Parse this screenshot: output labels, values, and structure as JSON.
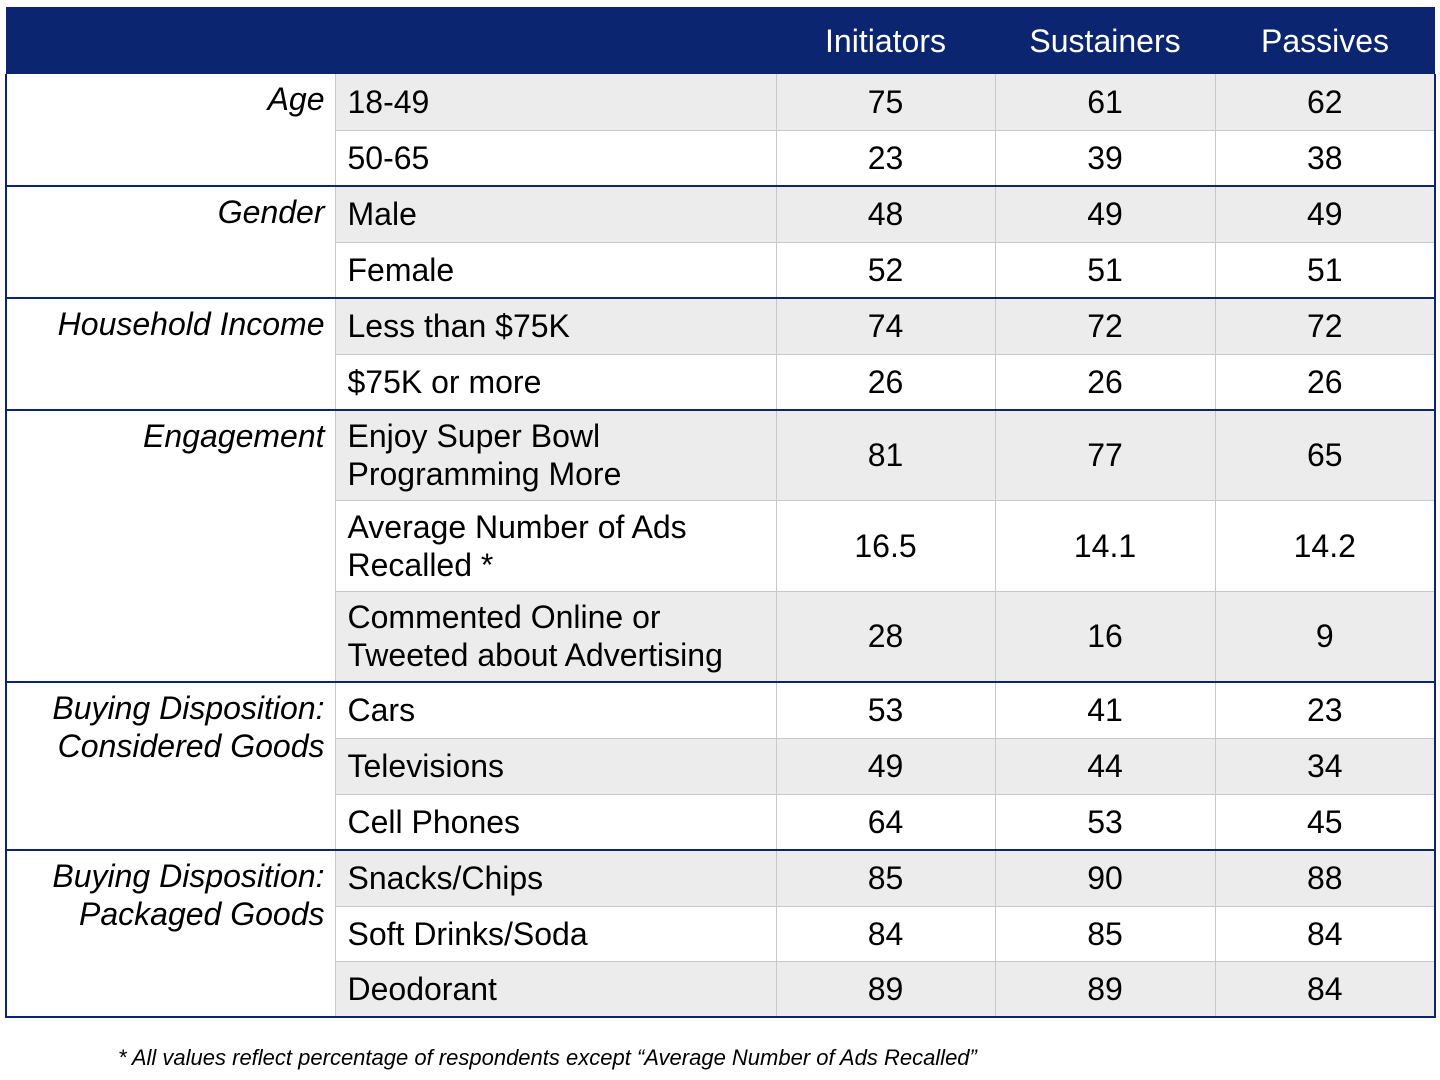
{
  "header": {
    "columns": [
      "",
      "",
      "Initiators",
      "Sustainers",
      "Passives"
    ]
  },
  "groups": [
    {
      "category": "Age",
      "rows": [
        {
          "label": "18-49",
          "values": [
            "75",
            "61",
            "62"
          ],
          "shade": "gray"
        },
        {
          "label": "50-65",
          "values": [
            "23",
            "39",
            "38"
          ],
          "shade": "white"
        }
      ]
    },
    {
      "category": "Gender",
      "rows": [
        {
          "label": "Male",
          "values": [
            "48",
            "49",
            "49"
          ],
          "shade": "gray"
        },
        {
          "label": "Female",
          "values": [
            "52",
            "51",
            "51"
          ],
          "shade": "white"
        }
      ]
    },
    {
      "category": "Household Income",
      "rows": [
        {
          "label": "Less than $75K",
          "values": [
            "74",
            "72",
            "72"
          ],
          "shade": "gray"
        },
        {
          "label": "$75K or more",
          "values": [
            "26",
            "26",
            "26"
          ],
          "shade": "white"
        }
      ]
    },
    {
      "category": "Engagement",
      "rows": [
        {
          "label": "Enjoy Super Bowl Programming More",
          "values": [
            "81",
            "77",
            "65"
          ],
          "shade": "gray"
        },
        {
          "label": "Average Number of Ads Recalled *",
          "values": [
            "16.5",
            "14.1",
            "14.2"
          ],
          "shade": "white"
        },
        {
          "label": "Commented Online or Tweeted about Advertising",
          "values": [
            "28",
            "16",
            "9"
          ],
          "shade": "gray"
        }
      ]
    },
    {
      "category": "Buying Disposition: Considered Goods",
      "rows": [
        {
          "label": "Cars",
          "values": [
            "53",
            "41",
            "23"
          ],
          "shade": "white"
        },
        {
          "label": "Televisions",
          "values": [
            "49",
            "44",
            "34"
          ],
          "shade": "gray"
        },
        {
          "label": "Cell Phones",
          "values": [
            "64",
            "53",
            "45"
          ],
          "shade": "white"
        }
      ]
    },
    {
      "category": "Buying Disposition: Packaged Goods",
      "rows": [
        {
          "label": "Snacks/Chips",
          "values": [
            "85",
            "90",
            "88"
          ],
          "shade": "gray"
        },
        {
          "label": "Soft Drinks/Soda",
          "values": [
            "84",
            "85",
            "84"
          ],
          "shade": "white"
        },
        {
          "label": "Deodorant",
          "values": [
            "89",
            "89",
            "84"
          ],
          "shade": "gray"
        }
      ]
    }
  ],
  "footnote": "* All values reflect percentage of respondents except “Average Number of Ads Recalled”",
  "colors": {
    "header_bg": "#0c2571",
    "row_gray": "#ececec",
    "group_border": "#0c2571"
  }
}
